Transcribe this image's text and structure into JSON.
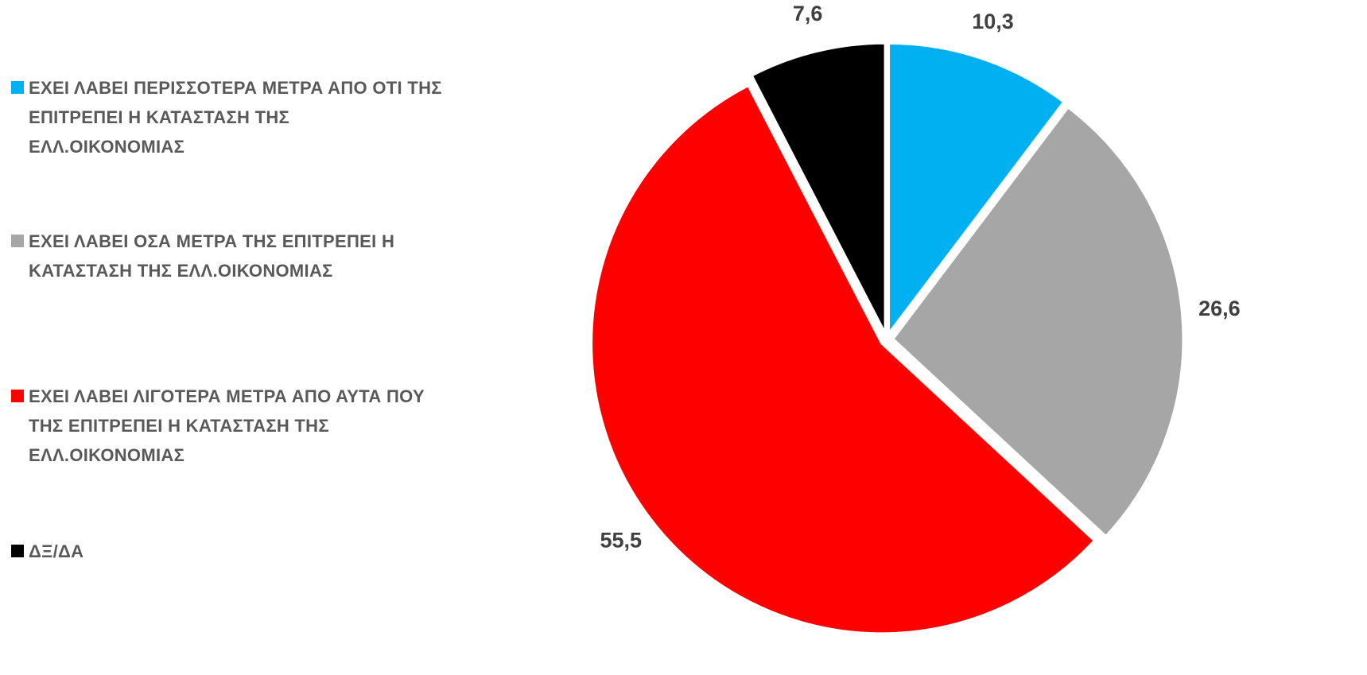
{
  "chart_data": {
    "type": "pie",
    "slices": [
      {
        "label": "ΕΧΕΙ ΛΑΒΕΙ ΠΕΡΙΣΣΟΤΕΡΑ ΜΕΤΡΑ ΑΠΟ ΟΤΙ ΤΗΣ ΕΠΙΤΡΕΠΕΙ Η ΚΑΤΑΣΤΑΣΗ ΤΗΣ ΕΛΛ.ΟΙΚΟΝΟΜΙΑΣ",
        "value": 10.3,
        "value_label": "10,3",
        "color": "#00B0F0"
      },
      {
        "label": "ΕΧΕΙ ΛΑΒΕΙ ΟΣΑ ΜΕΤΡΑ ΤΗΣ ΕΠΙΤΡΕΠΕΙ Η ΚΑΤΑΣΤΑΣΗ ΤΗΣ ΕΛΛ.ΟΙΚΟΝΟΜΙΑΣ",
        "value": 26.6,
        "value_label": "26,6",
        "color": "#A6A6A6"
      },
      {
        "label": "ΕΧΕΙ ΛΑΒΕΙ ΛΙΓΟΤΕΡΑ ΜΕΤΡΑ ΑΠΟ ΑΥΤΑ ΠΟΥ ΤΗΣ ΕΠΙΤΡΕΠΕΙ Η ΚΑΤΑΣΤΑΣΗ ΤΗΣ ΕΛΛ.ΟΙΚΟΝΟΜΙΑΣ",
        "value": 55.5,
        "value_label": "55,5",
        "color": "#FF0000"
      },
      {
        "label": "ΔΞ/ΔΑ",
        "value": 7.6,
        "value_label": "7,6",
        "color": "#000000"
      }
    ],
    "legend_position": "left",
    "start_angle": "12 o'clock",
    "direction": "clockwise",
    "exploded": true
  }
}
